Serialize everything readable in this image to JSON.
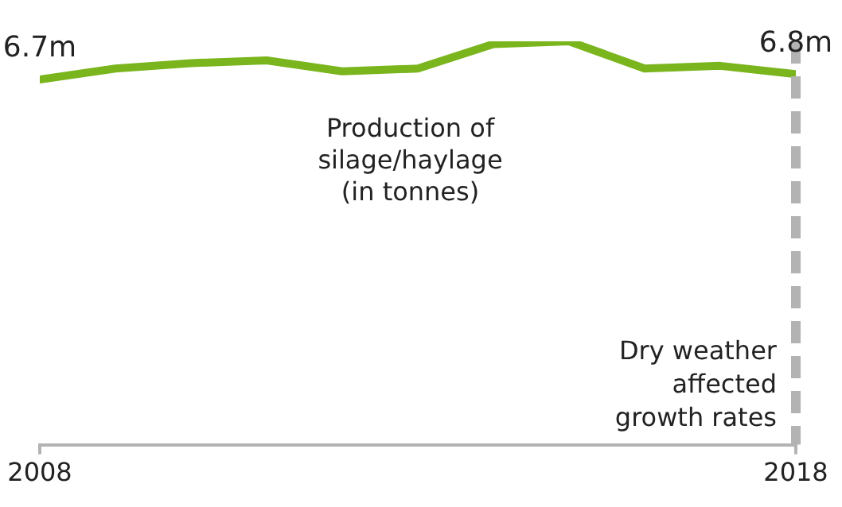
{
  "chart_data": {
    "type": "line",
    "color": "#7ab51d",
    "marker": "none",
    "x": [
      2008,
      2009,
      2010,
      2011,
      2012,
      2013,
      2014,
      2015,
      2016,
      2017,
      2018
    ],
    "values": [
      6.7,
      6.9,
      7.0,
      7.05,
      6.85,
      6.9,
      7.35,
      7.4,
      6.9,
      6.95,
      6.8
    ],
    "value_labels": [
      "6.7m",
      null,
      null,
      null,
      null,
      null,
      null,
      null,
      null,
      null,
      "6.8m"
    ],
    "xlim": [
      2008,
      2018
    ],
    "xticks": [
      2008,
      2018
    ],
    "ref_lines": [
      {
        "axis": "x",
        "value": 2018,
        "label": "Dry weather affected growth rates",
        "color": "#b3b3b3",
        "line_style": "dashed"
      }
    ],
    "annotations": [
      "Production of silage/haylage (in tonnes)"
    ]
  }
}
